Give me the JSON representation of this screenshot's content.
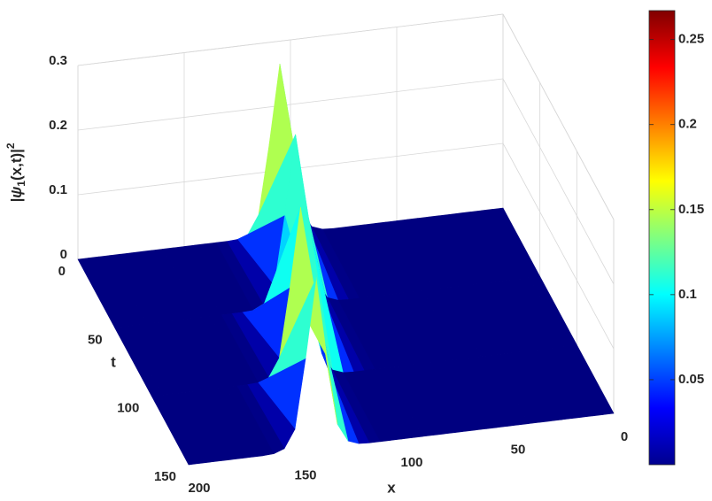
{
  "chart_data": {
    "type": "surface",
    "xlabel": "x",
    "ylabel": "t",
    "zlabel": [
      "|ψ",
      "1",
      "(x,t)|",
      "2"
    ],
    "x": [
      0,
      5,
      10,
      15,
      20,
      25,
      30,
      35,
      40,
      45,
      50,
      55,
      60,
      65,
      70,
      75,
      80,
      85,
      90,
      95,
      100,
      105,
      110,
      115,
      120,
      125,
      130,
      135,
      140,
      145,
      150,
      155,
      160,
      165,
      170,
      175,
      180,
      185,
      190,
      195,
      200
    ],
    "t": [
      0,
      50,
      100,
      150
    ],
    "z": [
      [
        0,
        0,
        0,
        0,
        0,
        0,
        0,
        0,
        0,
        0,
        0,
        0,
        0,
        0,
        0,
        0,
        0,
        0.001,
        0.007,
        0.035,
        0.142,
        0.265,
        0.142,
        0.035,
        0.007,
        0.001,
        0,
        0,
        0,
        0,
        0,
        0,
        0,
        0,
        0,
        0,
        0,
        0,
        0,
        0,
        0
      ],
      [
        0,
        0,
        0,
        0,
        0,
        0,
        0,
        0,
        0,
        0,
        0,
        0,
        0,
        0,
        0,
        0,
        0,
        0,
        0,
        0.001,
        0.007,
        0.035,
        0.142,
        0.265,
        0.142,
        0.035,
        0.007,
        0.001,
        0,
        0,
        0,
        0,
        0,
        0,
        0,
        0,
        0,
        0,
        0,
        0,
        0
      ],
      [
        0,
        0,
        0,
        0,
        0,
        0,
        0,
        0,
        0,
        0,
        0,
        0,
        0,
        0,
        0,
        0,
        0,
        0,
        0,
        0,
        0,
        0,
        0.001,
        0.007,
        0.035,
        0.142,
        0.265,
        0.142,
        0.035,
        0.007,
        0.001,
        0,
        0,
        0,
        0,
        0,
        0,
        0,
        0,
        0,
        0
      ],
      [
        0,
        0,
        0,
        0,
        0,
        0,
        0,
        0,
        0,
        0,
        0,
        0,
        0,
        0,
        0,
        0,
        0,
        0,
        0,
        0,
        0,
        0,
        0,
        0,
        0.001,
        0.007,
        0.035,
        0.142,
        0.265,
        0.142,
        0.035,
        0.007,
        0.001,
        0,
        0,
        0,
        0,
        0,
        0,
        0,
        0
      ]
    ],
    "xlim": [
      0,
      200
    ],
    "ylim": [
      0,
      150
    ],
    "zlim": [
      0,
      0.3
    ],
    "xticks": [
      0,
      50,
      100,
      150,
      200
    ],
    "yticks": [
      0,
      50,
      100,
      150
    ],
    "zticks": [
      0,
      0.1,
      0.2,
      0.3
    ],
    "colormap": "jet",
    "clim": [
      0,
      0.267
    ],
    "cticks": [
      0.05,
      0.1,
      0.15,
      0.2,
      0.25
    ],
    "grid": true
  }
}
